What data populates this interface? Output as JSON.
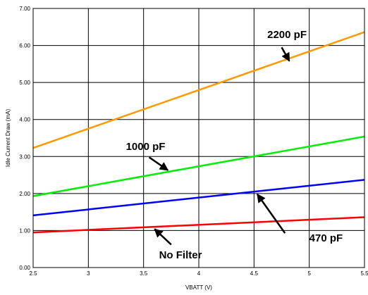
{
  "chart_data": {
    "type": "line",
    "xlabel": "VBATT (V)",
    "ylabel": "Idle Current Draw (mA)",
    "xlim": [
      2.5,
      5.5
    ],
    "ylim": [
      0,
      7
    ],
    "grid": true,
    "x_ticks": [
      2.5,
      3,
      3.5,
      4,
      4.5,
      5,
      5.5
    ],
    "x_tick_labels": [
      "2.5",
      "3",
      "3.5",
      "4",
      "4.5",
      "5",
      "5.5"
    ],
    "y_ticks": [
      0,
      1,
      2,
      3,
      4,
      5,
      6,
      7
    ],
    "y_tick_labels": [
      "0.00",
      "1.00",
      "2.00",
      "3.00",
      "4.00",
      "5.00",
      "6.00",
      "7.00"
    ],
    "series": [
      {
        "name": "No Filter",
        "color": "#ff0000",
        "x": [
          2.5,
          5.5
        ],
        "y": [
          0.95,
          1.36
        ]
      },
      {
        "name": "470 pF",
        "color": "#0000ff",
        "x": [
          2.5,
          5.5
        ],
        "y": [
          1.41,
          2.37
        ]
      },
      {
        "name": "1000 pF",
        "color": "#00ee00",
        "x": [
          2.5,
          5.5
        ],
        "y": [
          1.93,
          3.54
        ]
      },
      {
        "name": "2200 pF",
        "color": "#ff9900",
        "x": [
          2.5,
          5.5
        ],
        "y": [
          3.23,
          6.36
        ]
      }
    ],
    "annotations": [
      {
        "text": "2200 pF",
        "label_at": [
          4.62,
          6.2
        ],
        "arrow_from": [
          4.75,
          5.95
        ],
        "arrow_to": [
          4.82,
          5.58
        ]
      },
      {
        "text": "1000 pF",
        "label_at": [
          3.34,
          3.18
        ],
        "arrow_from": [
          3.55,
          2.98
        ],
        "arrow_to": [
          3.72,
          2.63
        ]
      },
      {
        "text": "470 pF",
        "label_at": [
          5.0,
          0.7
        ],
        "arrow_from": [
          4.78,
          0.93
        ],
        "arrow_to": [
          4.53,
          1.98
        ]
      },
      {
        "text": "No Filter",
        "label_at": [
          3.64,
          0.25
        ],
        "arrow_from": [
          3.75,
          0.62
        ],
        "arrow_to": [
          3.6,
          1.04
        ]
      }
    ]
  }
}
